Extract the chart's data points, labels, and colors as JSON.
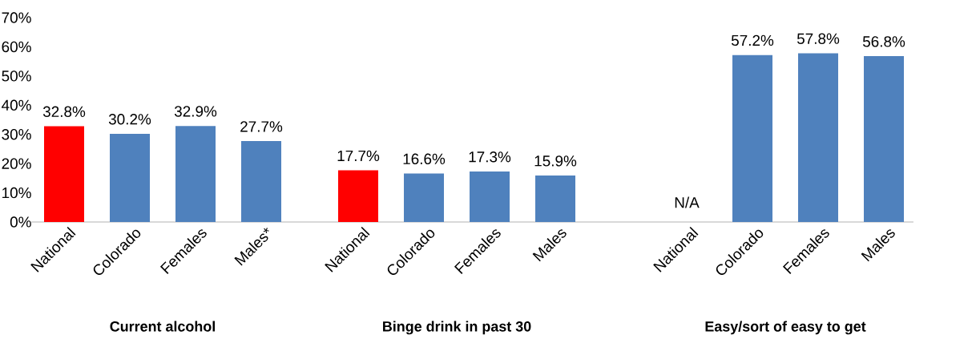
{
  "chart_data": [
    {
      "type": "bar",
      "categories": [
        "National",
        "Colorado",
        "Females",
        "Males*"
      ],
      "values": [
        32.8,
        30.2,
        32.9,
        27.7
      ],
      "colors": [
        "#ff0000",
        "#4f81bd",
        "#4f81bd",
        "#4f81bd"
      ],
      "value_labels": [
        "32.8%",
        "30.2%",
        "32.9%",
        "27.7%"
      ],
      "xlabel": "Current alcohol",
      "ylim": [
        0,
        70
      ],
      "yticks": [
        {
          "value": 0,
          "label": "0%"
        },
        {
          "value": 10,
          "label": "10%"
        },
        {
          "value": 20,
          "label": "20%"
        },
        {
          "value": 30,
          "label": "30%"
        },
        {
          "value": 40,
          "label": "40%"
        },
        {
          "value": 50,
          "label": "50%"
        },
        {
          "value": 60,
          "label": "60%"
        },
        {
          "value": 70,
          "label": "70%"
        }
      ]
    },
    {
      "type": "bar",
      "categories": [
        "National",
        "Colorado",
        "Females",
        "Males"
      ],
      "values": [
        17.7,
        16.6,
        17.3,
        15.9
      ],
      "colors": [
        "#ff0000",
        "#4f81bd",
        "#4f81bd",
        "#4f81bd"
      ],
      "value_labels": [
        "17.7%",
        "16.6%",
        "17.3%",
        "15.9%"
      ],
      "xlabel": "Binge drink in past 30",
      "ylim": [
        0,
        70
      ],
      "tick_labels": "x"
    },
    {
      "type": "bar",
      "categories": [
        "National",
        "Colorado",
        "Females",
        "Males"
      ],
      "values": [
        null,
        57.2,
        57.8,
        56.8
      ],
      "colors": [
        "#ff0000",
        "#4f81bd",
        "#4f81bd",
        "#4f81bd"
      ],
      "value_labels": [
        "N/A",
        "57.2%",
        "57.8%",
        "56.8%"
      ],
      "xlabel": "Easy/sort of easy to get",
      "ylim": [
        0,
        70
      ],
      "tick_labels": "x"
    }
  ]
}
